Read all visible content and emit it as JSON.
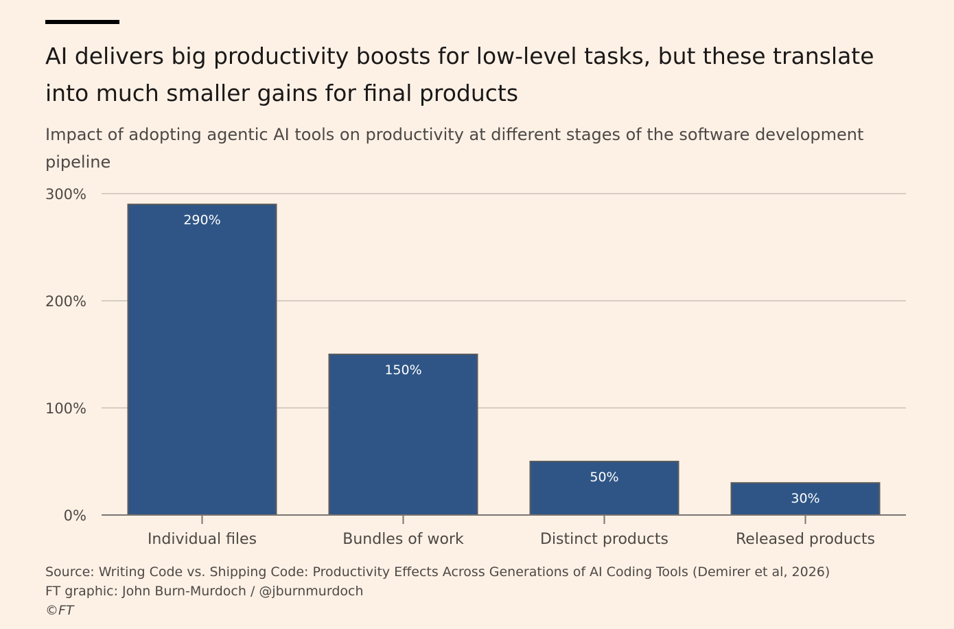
{
  "header": {
    "title": "AI delivers big productivity boosts for low-level tasks, but these translate into much smaller gains for final products",
    "subtitle": "Impact of adopting agentic AI tools on productivity at different stages of the software development pipeline"
  },
  "chart_data": {
    "type": "bar",
    "categories": [
      "Individual files",
      "Bundles of work",
      "Distinct products",
      "Released products"
    ],
    "values": [
      290,
      150,
      50,
      30
    ],
    "data_labels": [
      "290%",
      "150%",
      "50%",
      "30%"
    ],
    "ylim": [
      0,
      300
    ],
    "yticks": [
      0,
      100,
      200,
      300
    ],
    "ytick_labels": [
      "0%",
      "100%",
      "200%",
      "300%"
    ],
    "grid": true,
    "xlabel": "",
    "ylabel": "",
    "colors": {
      "bar": "#2f5586",
      "bar_edge": "#5b5b5b",
      "grid": "#d6ccc2",
      "axis": "#7a7470",
      "label_inside": "#ffffff",
      "text": "#4d4845"
    }
  },
  "footer": {
    "source": "Source: Writing Code vs. Shipping Code: Productivity Effects Across Generations of AI Coding Tools (Demirer et al, 2026)",
    "credit": "FT graphic: John Burn-Murdoch / @jburnmurdoch",
    "copyright": "©FT"
  }
}
